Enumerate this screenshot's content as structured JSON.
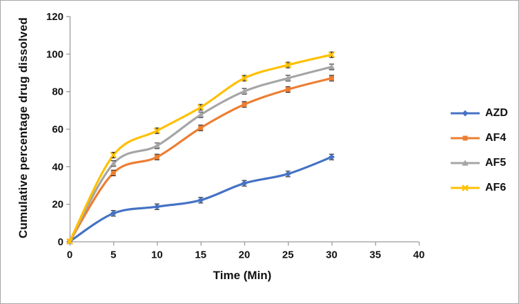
{
  "figure": {
    "background": "#ffffff",
    "border_color": "#a6a6a6",
    "axis_color": "#9b9b9b",
    "tick_text_color": "#111111",
    "error_bar_color": "#1a1a1a"
  },
  "chart_data": {
    "type": "line",
    "x": [
      0,
      5,
      10,
      15,
      20,
      25,
      30
    ],
    "series": [
      {
        "name": "AZD",
        "color": "#4472C4",
        "marker": "diamond",
        "values": [
          0,
          15,
          18.5,
          22,
          31,
          36,
          45
        ],
        "error": 1.5
      },
      {
        "name": "AF4",
        "color": "#ED7D31",
        "marker": "square",
        "values": [
          0,
          36.5,
          45,
          60.5,
          73,
          81,
          87
        ],
        "error": 1.5
      },
      {
        "name": "AF5",
        "color": "#A5A5A5",
        "marker": "triangle",
        "values": [
          0,
          41.5,
          51,
          67.5,
          80,
          87,
          93
        ],
        "error": 1.5
      },
      {
        "name": "AF6",
        "color": "#FFC000",
        "marker": "x",
        "values": [
          0,
          46,
          59,
          71.5,
          87,
          94,
          99.5
        ],
        "error": 1.5
      }
    ],
    "title": "",
    "xlabel": "Time (Min)",
    "ylabel": "Cumulative percentage drug dissolved",
    "xlim": [
      0,
      40
    ],
    "ylim": [
      0,
      120
    ],
    "x_ticks": [
      0,
      5,
      10,
      15,
      20,
      25,
      30,
      35,
      40
    ],
    "y_ticks": [
      0,
      20,
      40,
      60,
      80,
      100,
      120
    ],
    "grid": false,
    "error_bars": true,
    "legend_position": "right"
  }
}
